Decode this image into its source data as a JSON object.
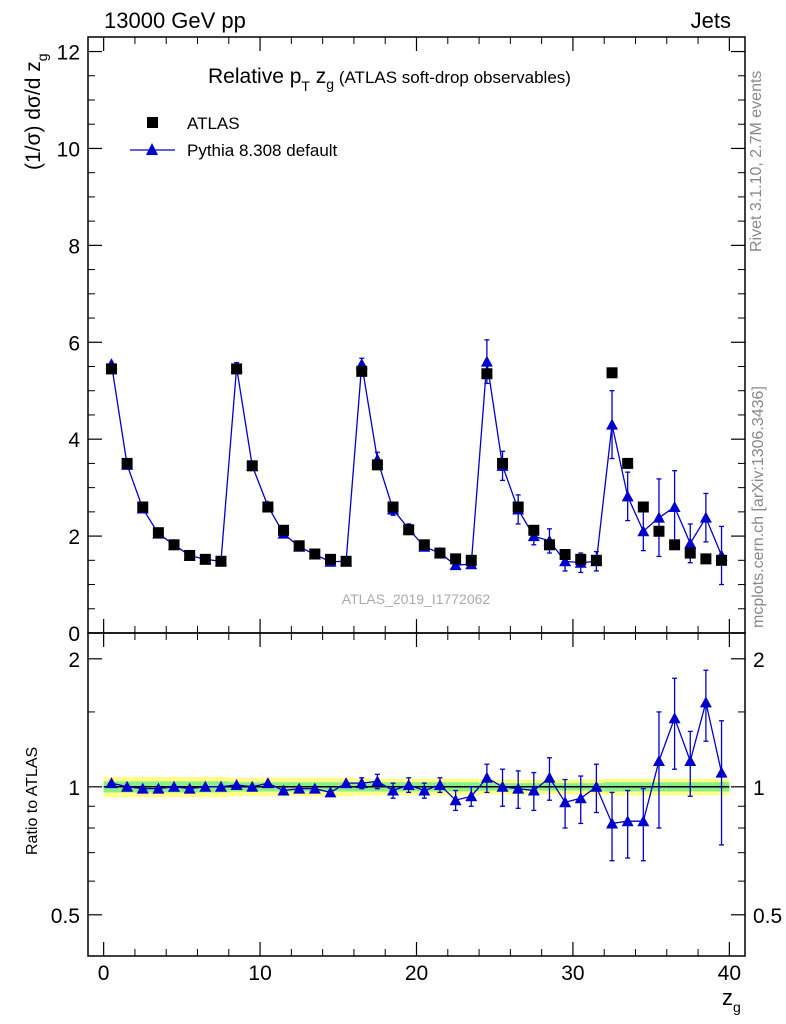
{
  "header": {
    "left": "13000 GeV pp",
    "right": "Jets"
  },
  "title_parts": {
    "main": "Relative p",
    "sub1": "T",
    "mid": " z",
    "sub2": "g",
    "tail": " (ATLAS soft-drop observables)"
  },
  "ylabel_main": {
    "text": "(1/σ) dσ/d z",
    "sub": "g"
  },
  "ylabel_ratio": "Ratio to ATLAS",
  "xlabel": {
    "text": "z",
    "sub": "g"
  },
  "side_labels": {
    "rivet": "Rivet 3.1.10,  2.7M events",
    "mcplots": "mcplots.cern.ch [arXiv:1306.3436]"
  },
  "analysis_id": "ATLAS_2019_I1772062",
  "legend": {
    "data_label": "ATLAS",
    "mc_label": "Pythia 8.308 default"
  },
  "colors": {
    "data": "#000000",
    "mc": "#0000cc",
    "ratio_line": "#00aa00",
    "band_inner": "#88ee88",
    "band_outer": "#ffff88"
  },
  "chart_data": [
    {
      "type": "scatter",
      "panel": "main",
      "x": [
        0.5,
        1.5,
        2.5,
        3.5,
        4.5,
        5.5,
        6.5,
        7.5,
        8.5,
        9.5,
        10.5,
        11.5,
        12.5,
        13.5,
        14.5,
        15.5,
        16.5,
        17.5,
        18.5,
        19.5,
        20.5,
        21.5,
        22.5,
        23.5,
        24.5,
        25.5,
        26.5,
        27.5,
        28.5,
        29.5,
        30.5,
        31.5,
        32.5,
        33.5,
        34.5,
        35.5,
        36.5,
        37.5,
        38.5,
        39.5
      ],
      "series": [
        {
          "name": "ATLAS",
          "values": [
            5.45,
            3.5,
            2.6,
            2.07,
            1.82,
            1.6,
            1.52,
            1.48,
            5.45,
            3.45,
            2.6,
            2.12,
            1.8,
            1.63,
            1.52,
            1.48,
            5.4,
            3.47,
            2.6,
            2.13,
            1.82,
            1.65,
            1.53,
            1.5,
            5.35,
            3.5,
            2.6,
            2.12,
            1.82,
            1.62,
            1.52,
            1.5,
            5.37,
            3.5,
            2.6,
            2.1,
            1.82,
            1.65,
            1.53,
            1.5
          ]
        },
        {
          "name": "Pythia 8.308 default",
          "values": [
            5.55,
            3.47,
            2.57,
            2.05,
            1.82,
            1.6,
            1.52,
            1.48,
            5.48,
            3.45,
            2.62,
            2.05,
            1.78,
            1.62,
            1.47,
            1.48,
            5.55,
            3.58,
            2.55,
            2.15,
            1.78,
            1.65,
            1.4,
            1.42,
            5.6,
            3.45,
            2.55,
            2.0,
            1.9,
            1.48,
            1.45,
            1.48,
            4.3,
            2.82,
            2.1,
            2.38,
            2.6,
            1.85,
            2.38,
            1.6
          ],
          "errors": [
            0.05,
            0.05,
            0.05,
            0.05,
            0.05,
            0.05,
            0.05,
            0.05,
            0.1,
            0.08,
            0.06,
            0.06,
            0.05,
            0.05,
            0.05,
            0.05,
            0.12,
            0.15,
            0.12,
            0.1,
            0.08,
            0.07,
            0.08,
            0.08,
            0.45,
            0.3,
            0.3,
            0.18,
            0.25,
            0.2,
            0.2,
            0.2,
            0.7,
            0.5,
            0.4,
            0.8,
            0.75,
            0.4,
            0.5,
            0.6
          ]
        }
      ],
      "ylim": [
        0,
        12.3
      ],
      "yticks": [
        0,
        2,
        4,
        6,
        8,
        10,
        12
      ],
      "xlim": [
        -1,
        41
      ]
    },
    {
      "type": "scatter",
      "panel": "ratio",
      "x": [
        0.5,
        1.5,
        2.5,
        3.5,
        4.5,
        5.5,
        6.5,
        7.5,
        8.5,
        9.5,
        10.5,
        11.5,
        12.5,
        13.5,
        14.5,
        15.5,
        16.5,
        17.5,
        18.5,
        19.5,
        20.5,
        21.5,
        22.5,
        23.5,
        24.5,
        25.5,
        26.5,
        27.5,
        28.5,
        29.5,
        30.5,
        31.5,
        32.5,
        33.5,
        34.5,
        35.5,
        36.5,
        37.5,
        38.5,
        39.5
      ],
      "series": [
        {
          "name": "Pythia 8.308 default",
          "values": [
            1.02,
            1.0,
            0.99,
            0.99,
            1.0,
            0.99,
            1.0,
            1.0,
            1.01,
            1.0,
            1.02,
            0.98,
            0.99,
            0.99,
            0.97,
            1.02,
            1.02,
            1.03,
            0.98,
            1.01,
            0.98,
            1.01,
            0.93,
            0.95,
            1.05,
            1.0,
            0.99,
            0.98,
            1.05,
            0.92,
            0.94,
            1.0,
            0.82,
            0.83,
            0.83,
            1.15,
            1.45,
            1.15,
            1.58,
            1.08
          ],
          "errors": [
            0.02,
            0.02,
            0.02,
            0.02,
            0.02,
            0.02,
            0.02,
            0.02,
            0.02,
            0.02,
            0.02,
            0.02,
            0.02,
            0.02,
            0.02,
            0.02,
            0.03,
            0.04,
            0.04,
            0.04,
            0.04,
            0.04,
            0.05,
            0.05,
            0.08,
            0.1,
            0.1,
            0.1,
            0.12,
            0.12,
            0.12,
            0.13,
            0.15,
            0.15,
            0.16,
            0.35,
            0.35,
            0.2,
            0.3,
            0.35
          ]
        }
      ],
      "band_outer": [
        0.055,
        0.055,
        0.055,
        0.055,
        0.055,
        0.055,
        0.055,
        0.055,
        0.05,
        0.05,
        0.05,
        0.05,
        0.05,
        0.05,
        0.05,
        0.05,
        0.045,
        0.045,
        0.045,
        0.045,
        0.045,
        0.045,
        0.045,
        0.045,
        0.04,
        0.04,
        0.04,
        0.04,
        0.04,
        0.04,
        0.04,
        0.04,
        0.045,
        0.045,
        0.045,
        0.045,
        0.045,
        0.045,
        0.045,
        0.045
      ],
      "band_inner": [
        0.03,
        0.03,
        0.03,
        0.03,
        0.03,
        0.03,
        0.03,
        0.03,
        0.025,
        0.025,
        0.025,
        0.025,
        0.025,
        0.025,
        0.025,
        0.025,
        0.025,
        0.025,
        0.025,
        0.025,
        0.025,
        0.025,
        0.025,
        0.025,
        0.02,
        0.02,
        0.02,
        0.02,
        0.02,
        0.02,
        0.02,
        0.02,
        0.025,
        0.025,
        0.025,
        0.025,
        0.025,
        0.025,
        0.025,
        0.025
      ],
      "ylim": [
        0.4,
        2.3
      ],
      "ylog": true,
      "yticks": [
        0.5,
        1,
        2
      ],
      "xticks": [
        0,
        10,
        20,
        30,
        40
      ],
      "xlim": [
        -1,
        41
      ]
    }
  ]
}
